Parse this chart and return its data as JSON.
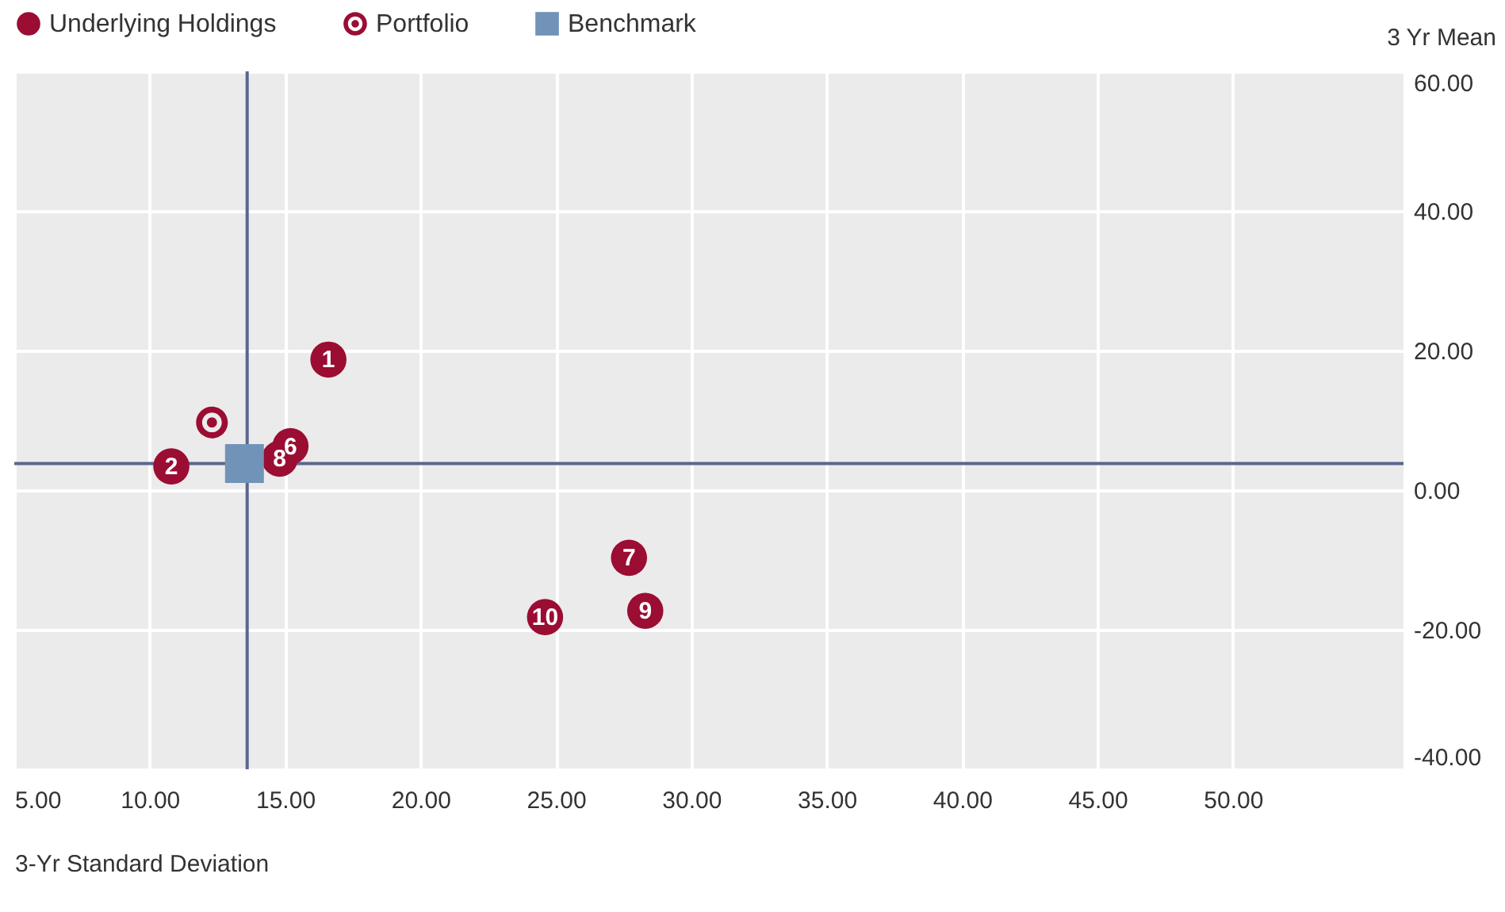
{
  "chart_data": {
    "type": "scatter",
    "xlabel": "3-Yr Standard Deviation",
    "ylabel": "3 Yr Mean",
    "xlim": [
      5,
      56.3
    ],
    "xticks": [
      {
        "value": 5,
        "label": "5.00"
      },
      {
        "value": 10,
        "label": "10.00"
      },
      {
        "value": 15,
        "label": "15.00"
      },
      {
        "value": 20,
        "label": "20.00"
      },
      {
        "value": 25,
        "label": "25.00"
      },
      {
        "value": 30,
        "label": "30.00"
      },
      {
        "value": 35,
        "label": "35.00"
      },
      {
        "value": 40,
        "label": "40.00"
      },
      {
        "value": 45,
        "label": "45.00"
      },
      {
        "value": 50,
        "label": "50.00"
      }
    ],
    "ylim": [
      -40,
      60
    ],
    "yticks": [
      {
        "value": -40,
        "label": "-40.00"
      },
      {
        "value": -20,
        "label": "-20.00"
      },
      {
        "value": 0,
        "label": "0.00"
      },
      {
        "value": 20,
        "label": "20.00"
      },
      {
        "value": 40,
        "label": "40.00"
      },
      {
        "value": 60,
        "label": "60.00"
      }
    ],
    "grid": true,
    "legend": "top left",
    "series": [
      {
        "name": "Underlying Holdings",
        "color": "#9b0d33",
        "marker": "circle",
        "x": [
          16.6,
          10.8,
          14.2,
          15.2,
          27.7,
          14.8,
          28.3,
          24.6
        ],
        "values": [
          18.7,
          3.4,
          null,
          6.3,
          -9.7,
          4.5,
          -17.3,
          -18.2
        ]
      },
      {
        "name": "Portfolio",
        "color": "#9b0d33",
        "marker": "circle",
        "x": [
          12.3
        ],
        "values": [
          9.7
        ]
      },
      {
        "name": "Benchmark",
        "color": "#7193b8",
        "marker": "square",
        "x": [
          13.5
        ],
        "values": [
          3.8
        ]
      }
    ],
    "annotations": [
      {
        "text": "1",
        "x": 16.6,
        "y": 18.7
      },
      {
        "text": "2",
        "x": 10.8,
        "y": 3.4
      },
      {
        "text": "6",
        "x": 15.2,
        "y": 6.3
      },
      {
        "text": "7",
        "x": 27.7,
        "y": -9.7
      },
      {
        "text": "8",
        "x": 14.8,
        "y": 4.5
      },
      {
        "text": "9",
        "x": 28.3,
        "y": -17.3
      },
      {
        "text": "10",
        "x": 24.6,
        "y": -18.2
      }
    ],
    "ref_lines": [
      {
        "axis": "x",
        "value": 13.6,
        "color": "#5b6590"
      },
      {
        "axis": "y",
        "value": 3.8,
        "color": "#5b6590"
      }
    ]
  }
}
